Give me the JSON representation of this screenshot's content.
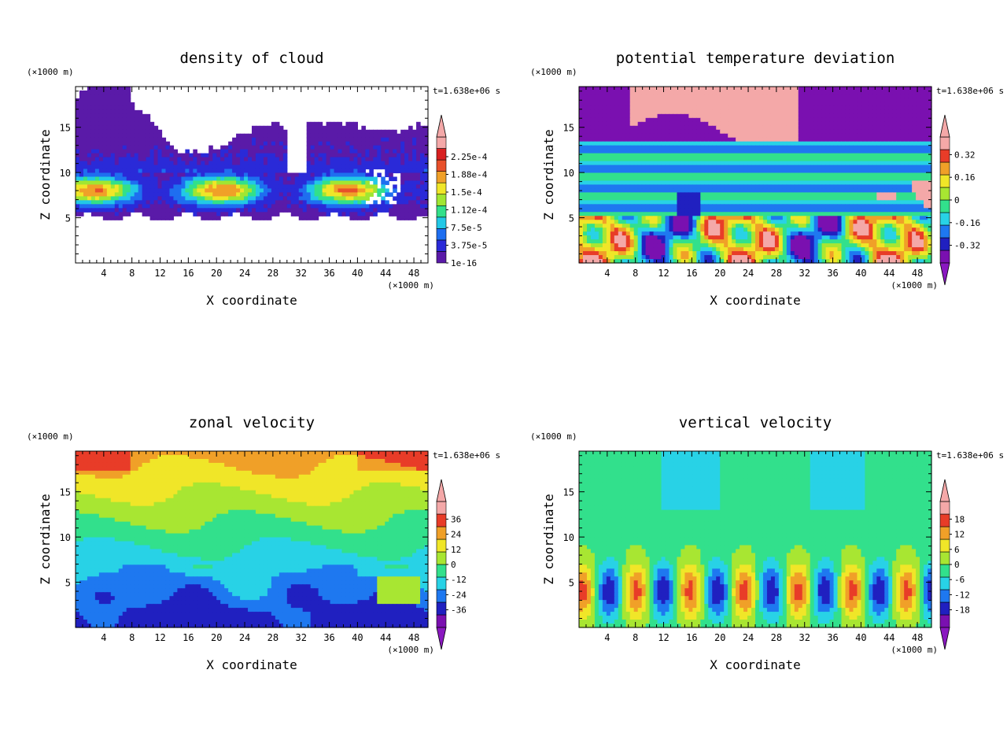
{
  "figure": {
    "time_label": "t=1.638e+06 s"
  },
  "chart_data": [
    {
      "type": "heatmap",
      "title": "density of cloud",
      "xlabel": "X coordinate",
      "ylabel": "Z coordinate",
      "x_unit": "(×1000 m)",
      "y_unit": "(×1000 m)",
      "xlim": [
        0,
        50
      ],
      "ylim": [
        0,
        19.5
      ],
      "x_ticks": [
        "4",
        "8",
        "12",
        "16",
        "20",
        "24",
        "28",
        "32",
        "36",
        "40",
        "44",
        "48"
      ],
      "y_ticks": [
        "5",
        "10",
        "15"
      ],
      "colorbar": {
        "labels": [
          "1e-16",
          "3.75e-5",
          "7.5e-5",
          "1.12e-4",
          "1.5e-4",
          "1.88e-4",
          "2.25e-4"
        ],
        "colors": [
          "#5a1aa8",
          "#2a2ad8",
          "#1e6ef0",
          "#22c8e6",
          "#32e08a",
          "#a0e632",
          "#f0e628",
          "#f0a028",
          "#e8502a",
          "#d82020",
          "#f4a8a8"
        ],
        "extend_low": false,
        "extend_high": true
      },
      "pattern": "cloud"
    },
    {
      "type": "heatmap",
      "title": "potential temperature deviation",
      "xlabel": "X coordinate",
      "ylabel": "Z coordinate",
      "x_unit": "(×1000 m)",
      "y_unit": "(×1000 m)",
      "xlim": [
        0,
        50
      ],
      "ylim": [
        0,
        19.5
      ],
      "x_ticks": [
        "4",
        "8",
        "12",
        "16",
        "20",
        "24",
        "28",
        "32",
        "36",
        "40",
        "44",
        "48"
      ],
      "y_ticks": [
        "5",
        "10",
        "15"
      ],
      "colorbar": {
        "labels": [
          "-0.32",
          "-0.16",
          "0",
          "0.16",
          "0.32"
        ],
        "colors": [
          "#7a10b0",
          "#2020c0",
          "#1e78f0",
          "#28d2e6",
          "#32e08c",
          "#a8e632",
          "#f0e628",
          "#f0a028",
          "#e83c28",
          "#f4a8a8"
        ],
        "extend_low": true,
        "extend_high": true
      },
      "pattern": "theta"
    },
    {
      "type": "heatmap",
      "title": "zonal velocity",
      "xlabel": "X coordinate",
      "ylabel": "Z coordinate",
      "x_unit": "(×1000 m)",
      "y_unit": "(×1000 m)",
      "xlim": [
        0,
        50
      ],
      "ylim": [
        0,
        19.5
      ],
      "x_ticks": [
        "4",
        "8",
        "12",
        "16",
        "20",
        "24",
        "28",
        "32",
        "36",
        "40",
        "44",
        "48"
      ],
      "y_ticks": [
        "5",
        "10",
        "15"
      ],
      "colorbar": {
        "labels": [
          "-36",
          "-24",
          "-12",
          "0",
          "12",
          "24",
          "36"
        ],
        "colors": [
          "#7a10b0",
          "#2020c0",
          "#1e78f0",
          "#28d2e6",
          "#32e08c",
          "#a8e632",
          "#f0e628",
          "#f0a028",
          "#e83c28",
          "#f4a8a8"
        ],
        "extend_low": true,
        "extend_high": true
      },
      "pattern": "zonal"
    },
    {
      "type": "heatmap",
      "title": "vertical velocity",
      "xlabel": "X coordinate",
      "ylabel": "Z coordinate",
      "x_unit": "(×1000 m)",
      "y_unit": "(×1000 m)",
      "xlim": [
        0,
        50
      ],
      "ylim": [
        0,
        19.5
      ],
      "x_ticks": [
        "4",
        "8",
        "12",
        "16",
        "20",
        "24",
        "28",
        "32",
        "36",
        "40",
        "44",
        "48"
      ],
      "y_ticks": [
        "5",
        "10",
        "15"
      ],
      "colorbar": {
        "labels": [
          "-18",
          "-12",
          "-6",
          "0",
          "6",
          "12",
          "18"
        ],
        "colors": [
          "#7a10b0",
          "#2020c0",
          "#1e78f0",
          "#28d2e6",
          "#32e08c",
          "#a8e632",
          "#f0e628",
          "#f0a028",
          "#e83c28",
          "#f4a8a8"
        ],
        "extend_low": true,
        "extend_high": true
      },
      "pattern": "vertical"
    }
  ]
}
